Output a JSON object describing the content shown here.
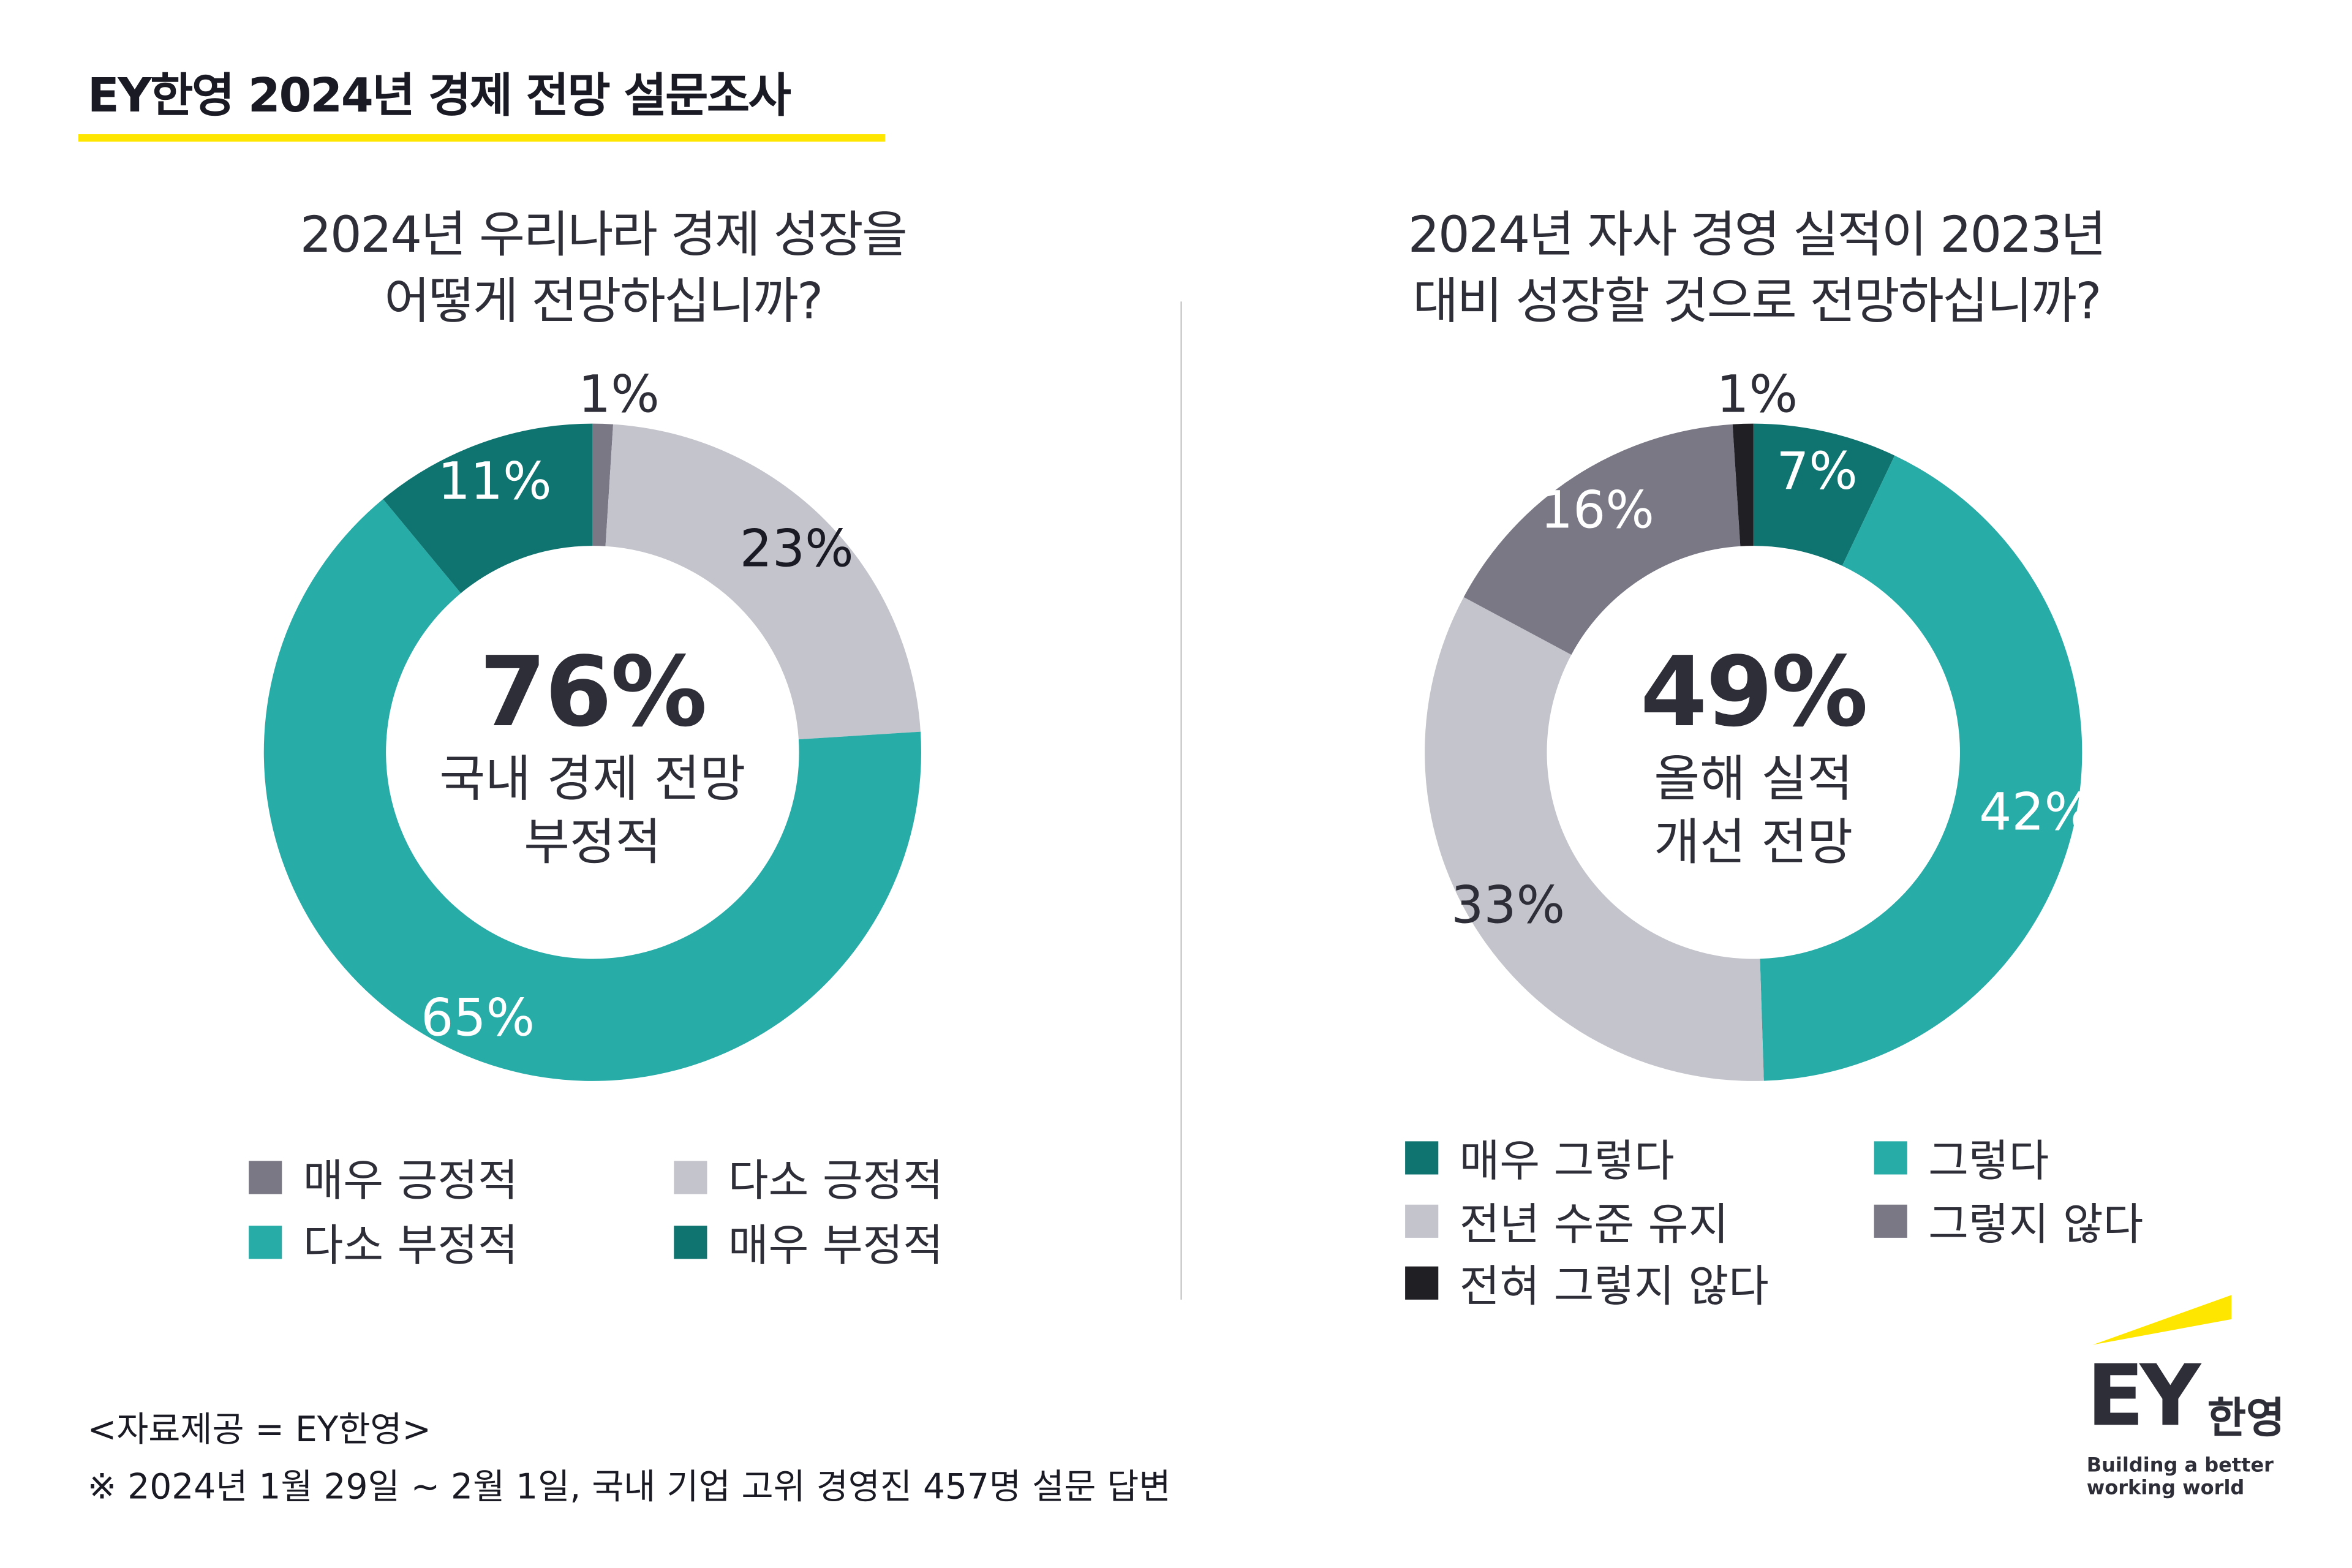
{
  "header": {
    "title": "EY한영 2024년 경제 전망 설문조사"
  },
  "colors": {
    "very_dark": "#0f7470",
    "teal": "#28aca8",
    "light_gray": "#c4c4cc",
    "mid_gray": "#7a7885",
    "black": "#1f1f24",
    "yellow": "#ffe600"
  },
  "chart_data": [
    {
      "type": "pie",
      "donut": true,
      "title": "2024년 우리나라 경제 성장을 어떻게 전망하십니까?",
      "title_lines": [
        "2024년 우리나라 경제 성장을",
        "어떻게 전망하십니까?"
      ],
      "center_value": "76%",
      "center_lines": [
        "국내 경제 전망",
        "부정적"
      ],
      "slices": [
        {
          "label": "매우 긍정적",
          "value": 1,
          "text": "1%",
          "color": "#7a7885",
          "label_color": "#2e2e38",
          "outside": true
        },
        {
          "label": "다소 긍정적",
          "value": 23,
          "text": "23%",
          "color": "#c4c4cc",
          "label_color": "#1a1a24"
        },
        {
          "label": "다소 부정적",
          "value": 65,
          "text": "65%",
          "color": "#28aca8",
          "label_color": "#ffffff"
        },
        {
          "label": "매우 부정적",
          "value": 11,
          "text": "11%",
          "color": "#0f7470",
          "label_color": "#ffffff"
        }
      ],
      "legend_order": [
        0,
        1,
        2,
        3
      ]
    },
    {
      "type": "pie",
      "donut": true,
      "title": "2024년 자사 경영 실적이 2023년 대비 성장할 것으로 전망하십니까?",
      "title_lines": [
        "2024년 자사 경영 실적이 2023년",
        "대비 성장할 것으로 전망하십니까?"
      ],
      "center_value": "49%",
      "center_lines": [
        "올해 실적",
        "개선 전망"
      ],
      "slices": [
        {
          "label": "매우 그렇다",
          "value": 7,
          "text": "7%",
          "color": "#0f7470",
          "label_color": "#ffffff"
        },
        {
          "label": "그렇다",
          "value": 42,
          "text": "42%",
          "color": "#28aca8",
          "label_color": "#ffffff"
        },
        {
          "label": "전년 수준 유지",
          "value": 33,
          "text": "33%",
          "color": "#c4c4cc",
          "label_color": "#2e2e38"
        },
        {
          "label": "그렇지 않다",
          "value": 16,
          "text": "16%",
          "color": "#7a7885",
          "label_color": "#ffffff"
        },
        {
          "label": "전혀 그렇지 않다",
          "value": 1,
          "text": "1%",
          "color": "#1f1f24",
          "label_color": "#2e2e38",
          "outside": true
        }
      ],
      "legend_order": [
        0,
        1,
        2,
        3,
        4
      ]
    }
  ],
  "footer": {
    "source": "<자료제공 = EY한영>",
    "note": "※ 2024년 1월 29일 ~ 2월 1일, 국내 기업 고위 경영진 457명 설문 답변"
  },
  "logo": {
    "text": "EY",
    "korean": "한영",
    "tagline1": "Building a better",
    "tagline2": "working world"
  }
}
